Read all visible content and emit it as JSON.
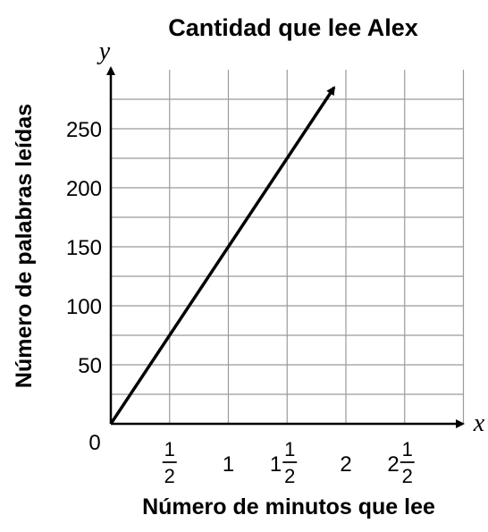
{
  "chart_data": {
    "type": "line",
    "title": "Cantidad que lee Alex",
    "xlabel": "Número de minutos que lee",
    "ylabel": "Número de palabras leídas",
    "x_var": "x",
    "y_var": "y",
    "origin_label": "0",
    "xlim": [
      0,
      3
    ],
    "ylim": [
      0,
      275
    ],
    "grid": true,
    "x_ticks": [
      {
        "value": 0.5,
        "whole": "",
        "num": "1",
        "den": "2"
      },
      {
        "value": 1,
        "whole": "1",
        "num": "",
        "den": ""
      },
      {
        "value": 1.5,
        "whole": "1",
        "num": "1",
        "den": "2"
      },
      {
        "value": 2,
        "whole": "2",
        "num": "",
        "den": ""
      },
      {
        "value": 2.5,
        "whole": "2",
        "num": "1",
        "den": "2"
      }
    ],
    "y_ticks": [
      50,
      100,
      150,
      200,
      250
    ],
    "series": [
      {
        "points": [
          [
            0,
            0
          ],
          [
            1,
            150
          ],
          [
            1.9,
            285
          ]
        ],
        "arrow_end": true
      }
    ]
  }
}
